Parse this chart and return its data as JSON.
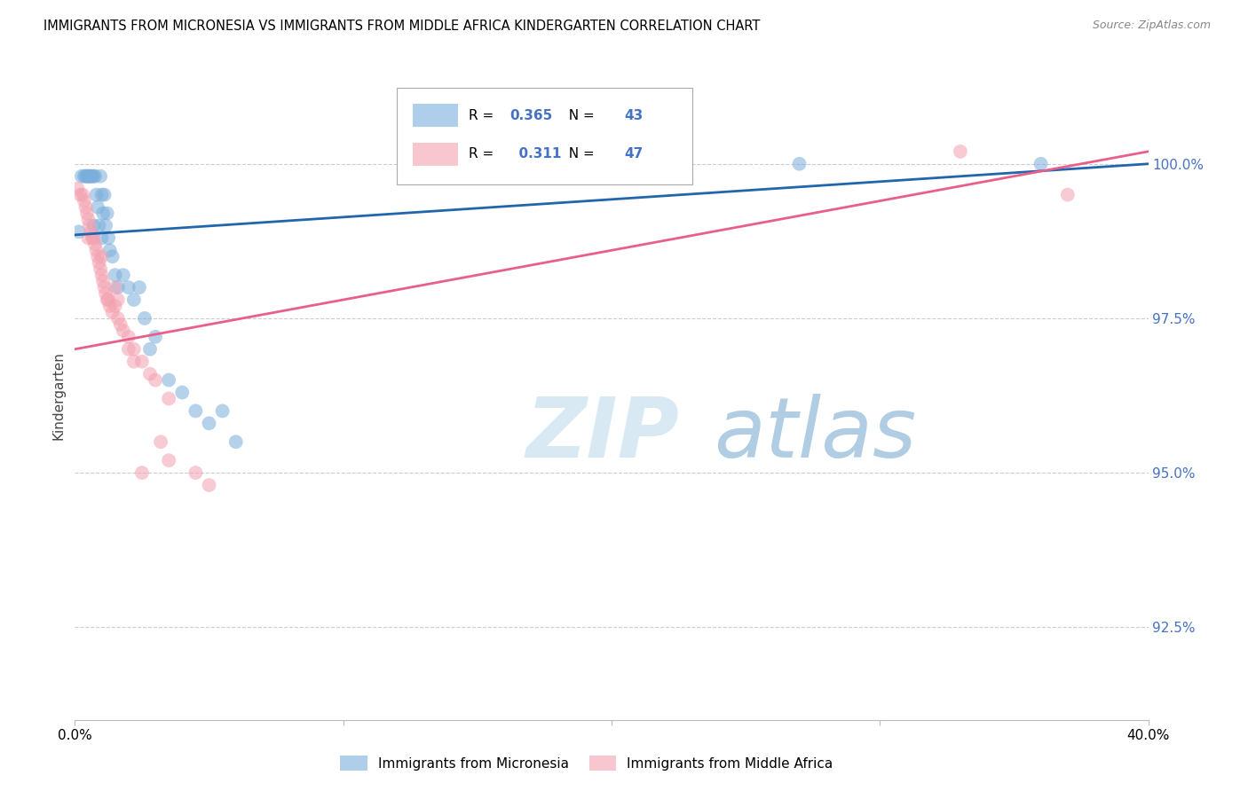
{
  "title": "IMMIGRANTS FROM MICRONESIA VS IMMIGRANTS FROM MIDDLE AFRICA KINDERGARTEN CORRELATION CHART",
  "source": "Source: ZipAtlas.com",
  "ylabel": "Kindergarten",
  "ytick_labels": [
    "92.5%",
    "95.0%",
    "97.5%",
    "100.0%"
  ],
  "ytick_values": [
    92.5,
    95.0,
    97.5,
    100.0
  ],
  "xlim": [
    0.0,
    40.0
  ],
  "ylim": [
    91.0,
    101.5
  ],
  "legend_blue_label": "Immigrants from Micronesia",
  "legend_pink_label": "Immigrants from Middle Africa",
  "R_blue": 0.365,
  "N_blue": 43,
  "R_pink": 0.311,
  "N_pink": 47,
  "blue_color": "#7AAEDB",
  "pink_color": "#F4A0B0",
  "blue_line_color": "#2166ac",
  "pink_line_color": "#e8608a",
  "watermark_zip": "ZIP",
  "watermark_atlas": "atlas",
  "blue_x": [
    0.15,
    0.25,
    0.35,
    0.4,
    0.45,
    0.5,
    0.5,
    0.55,
    0.6,
    0.65,
    0.7,
    0.7,
    0.75,
    0.8,
    0.85,
    0.9,
    0.95,
    1.0,
    1.0,
    1.05,
    1.1,
    1.15,
    1.2,
    1.25,
    1.3,
    1.4,
    1.5,
    1.6,
    1.8,
    2.0,
    2.2,
    2.4,
    2.6,
    2.8,
    3.0,
    3.5,
    4.0,
    4.5,
    5.0,
    5.5,
    6.0,
    27.0,
    36.0
  ],
  "blue_y": [
    98.9,
    99.8,
    99.8,
    99.8,
    99.8,
    99.8,
    99.8,
    99.8,
    99.8,
    99.8,
    99.8,
    99.0,
    99.8,
    99.5,
    99.3,
    99.0,
    99.8,
    98.8,
    99.5,
    99.2,
    99.5,
    99.0,
    99.2,
    98.8,
    98.6,
    98.5,
    98.2,
    98.0,
    98.2,
    98.0,
    97.8,
    98.0,
    97.5,
    97.0,
    97.2,
    96.5,
    96.3,
    96.0,
    95.8,
    96.0,
    95.5,
    100.0,
    100.0
  ],
  "pink_x": [
    0.1,
    0.2,
    0.3,
    0.35,
    0.4,
    0.45,
    0.5,
    0.5,
    0.55,
    0.6,
    0.65,
    0.7,
    0.75,
    0.8,
    0.85,
    0.9,
    0.95,
    1.0,
    1.0,
    1.05,
    1.1,
    1.15,
    1.2,
    1.25,
    1.3,
    1.4,
    1.5,
    1.6,
    1.7,
    1.8,
    2.0,
    2.2,
    2.5,
    2.8,
    3.0,
    3.5,
    1.5,
    1.6,
    2.0,
    2.2,
    2.5,
    3.2,
    3.5,
    4.5,
    5.0,
    33.0,
    37.0
  ],
  "pink_y": [
    99.6,
    99.5,
    99.5,
    99.4,
    99.3,
    99.2,
    99.1,
    98.8,
    99.0,
    98.9,
    98.8,
    98.8,
    98.7,
    98.6,
    98.5,
    98.4,
    98.3,
    98.2,
    98.5,
    98.1,
    98.0,
    97.9,
    97.8,
    97.8,
    97.7,
    97.6,
    97.7,
    97.5,
    97.4,
    97.3,
    97.2,
    97.0,
    96.8,
    96.6,
    96.5,
    96.2,
    98.0,
    97.8,
    97.0,
    96.8,
    95.0,
    95.5,
    95.2,
    95.0,
    94.8,
    100.2,
    99.5
  ]
}
